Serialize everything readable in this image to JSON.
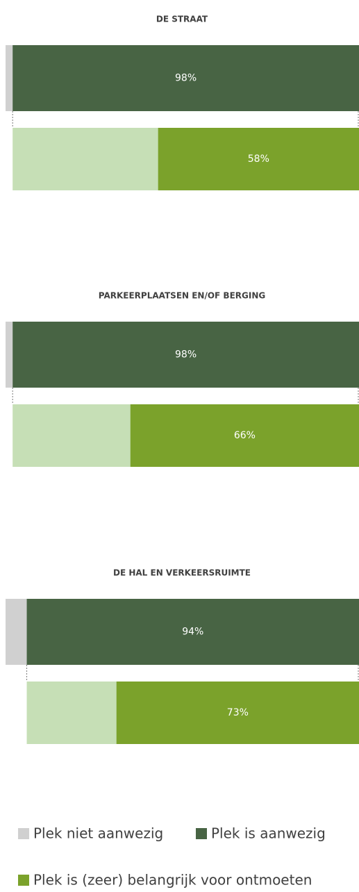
{
  "chart_data": {
    "type": "bar",
    "categories": [
      "DE STRAAT",
      "PARKEERPLAATSEN EN/OF BERGING",
      "DE HAL EN VERKEERSRUIMTE"
    ],
    "xlim": [
      0,
      100
    ],
    "series": [
      {
        "name": "Plek niet aanwezig",
        "color": "#d0d0d0",
        "values": [
          2,
          2,
          6
        ]
      },
      {
        "name": "Plek is aanwezig",
        "color": "#486444",
        "values": [
          98,
          98,
          94
        ],
        "value_labels": [
          "98%",
          "98%",
          "94%"
        ]
      },
      {
        "name": "Plek is (zeer) belangrijk voor ontmoeten",
        "color": "#7ba22b",
        "values": [
          58,
          66,
          73
        ],
        "value_labels": [
          "58%",
          "66%",
          "73%"
        ]
      }
    ]
  }
}
